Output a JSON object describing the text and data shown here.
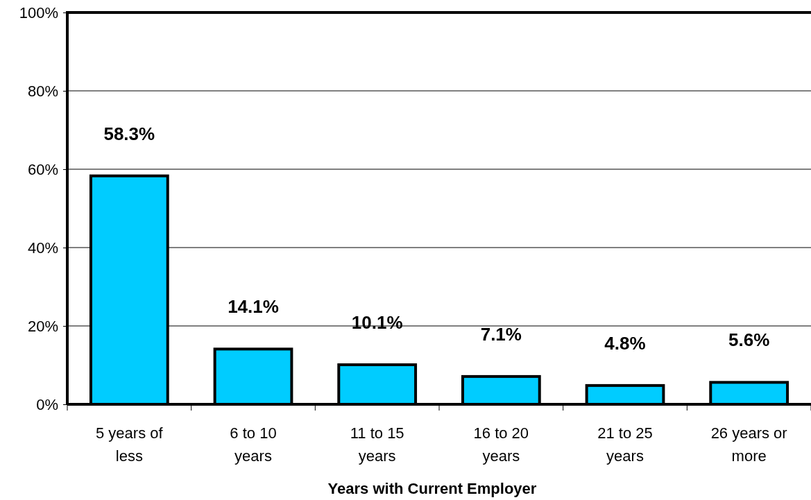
{
  "chart_data": {
    "type": "bar",
    "xlabel": "Years with Current Employer",
    "categories": [
      "5 years of less",
      "6 to 10 years",
      "11 to 15 years",
      "16 to 20 years",
      "21 to 25 years",
      "26 years or more"
    ],
    "values": [
      58.3,
      14.1,
      10.1,
      7.1,
      4.8,
      5.6
    ],
    "value_labels": [
      "58.3%",
      "14.1%",
      "10.1%",
      "7.1%",
      "4.8%",
      "5.6%"
    ],
    "color": "#00ccff",
    "ylim": [
      0,
      100
    ],
    "yticks": [
      {
        "value": 0,
        "label": "0%"
      },
      {
        "value": 20,
        "label": "20%"
      },
      {
        "value": 40,
        "label": "40%"
      },
      {
        "value": 60,
        "label": "60%"
      },
      {
        "value": 80,
        "label": "80%"
      },
      {
        "value": 100,
        "label": "100%"
      }
    ],
    "grid": "y"
  }
}
